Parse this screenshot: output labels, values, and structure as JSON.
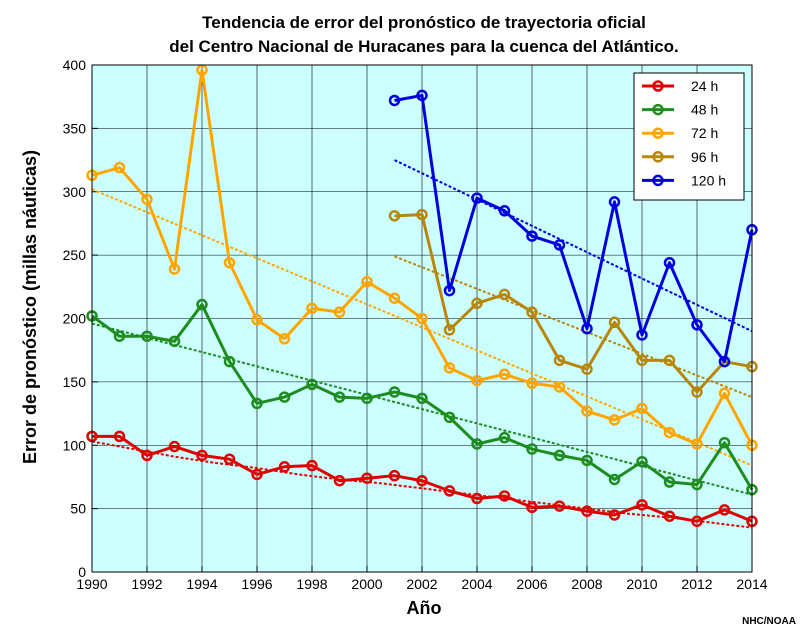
{
  "chart_data": {
    "type": "line",
    "title_lines": [
      "Tendencia de error del pronóstico de trayectoria oficial",
      "del Centro Nacional de Huracanes para la cuenca del Atlántico."
    ],
    "xlabel": "Año",
    "ylabel": "Error de pronóstico (millas náuticas)",
    "xlim": [
      1990,
      2014
    ],
    "ylim": [
      0,
      400
    ],
    "x_ticks": [
      1990,
      1992,
      1994,
      1996,
      1998,
      2000,
      2002,
      2004,
      2006,
      2008,
      2010,
      2012,
      2014
    ],
    "y_ticks": [
      0,
      50,
      100,
      150,
      200,
      250,
      300,
      350,
      400
    ],
    "grid": true,
    "background_color": "#ccffff",
    "legend_position": "top-right",
    "credit": "NHC/NOAA",
    "series": [
      {
        "name": "24 h",
        "color": "#e00000",
        "x": [
          1990,
          1991,
          1992,
          1993,
          1994,
          1995,
          1996,
          1997,
          1998,
          1999,
          2000,
          2001,
          2002,
          2003,
          2004,
          2005,
          2006,
          2007,
          2008,
          2009,
          2010,
          2011,
          2012,
          2013,
          2014
        ],
        "values": [
          107,
          107,
          92,
          99,
          92,
          89,
          77,
          83,
          84,
          72,
          74,
          76,
          72,
          64,
          58,
          60,
          51,
          52,
          48,
          45,
          53,
          44,
          40,
          49,
          40
        ],
        "trend": "quadratic",
        "trend_values": [
          103,
          97,
          91,
          86,
          82,
          77,
          73,
          70,
          66,
          62,
          58,
          54,
          50,
          46,
          43,
          39,
          35
        ]
      },
      {
        "name": "48 h",
        "color": "#1e8c1e",
        "x": [
          1990,
          1991,
          1992,
          1993,
          1994,
          1995,
          1996,
          1997,
          1998,
          1999,
          2000,
          2001,
          2002,
          2003,
          2004,
          2005,
          2006,
          2007,
          2008,
          2009,
          2010,
          2011,
          2012,
          2013,
          2014
        ],
        "values": [
          202,
          186,
          186,
          182,
          211,
          166,
          133,
          138,
          148,
          138,
          137,
          142,
          137,
          122,
          101,
          106,
          97,
          92,
          88,
          73,
          87,
          71,
          69,
          102,
          65
        ],
        "trend_x": [
          1990,
          2014
        ],
        "trend_values": [
          196,
          61
        ]
      },
      {
        "name": "72 h",
        "color": "#ffa500",
        "x": [
          1990,
          1991,
          1992,
          1993,
          1994,
          1995,
          1996,
          1997,
          1998,
          1999,
          2000,
          2001,
          2002,
          2003,
          2004,
          2005,
          2006,
          2007,
          2008,
          2009,
          2010,
          2011,
          2012,
          2013,
          2014
        ],
        "values": [
          313,
          319,
          294,
          239,
          396,
          244,
          199,
          184,
          208,
          205,
          229,
          216,
          200,
          161,
          151,
          156,
          149,
          146,
          127,
          120,
          129,
          110,
          101,
          141,
          100
        ],
        "trend_x": [
          1990,
          2014
        ],
        "trend_values": [
          302,
          84
        ]
      },
      {
        "name": "96 h",
        "color": "#b8860b",
        "x": [
          2001,
          2002,
          2003,
          2004,
          2005,
          2006,
          2007,
          2008,
          2009,
          2010,
          2011,
          2012,
          2013,
          2014
        ],
        "values": [
          281,
          282,
          191,
          212,
          219,
          205,
          167,
          160,
          197,
          167,
          167,
          142,
          166,
          162
        ],
        "trend_x": [
          2001,
          2014
        ],
        "trend_values": [
          249,
          138
        ]
      },
      {
        "name": "120 h",
        "color": "#0000dd",
        "x": [
          2001,
          2002,
          2003,
          2004,
          2005,
          2006,
          2007,
          2008,
          2009,
          2010,
          2011,
          2012,
          2013,
          2014
        ],
        "values": [
          372,
          376,
          222,
          295,
          285,
          265,
          258,
          192,
          292,
          187,
          244,
          195,
          166,
          270
        ],
        "trend_x": [
          2001,
          2014
        ],
        "trend_values": [
          325,
          190
        ]
      }
    ]
  }
}
